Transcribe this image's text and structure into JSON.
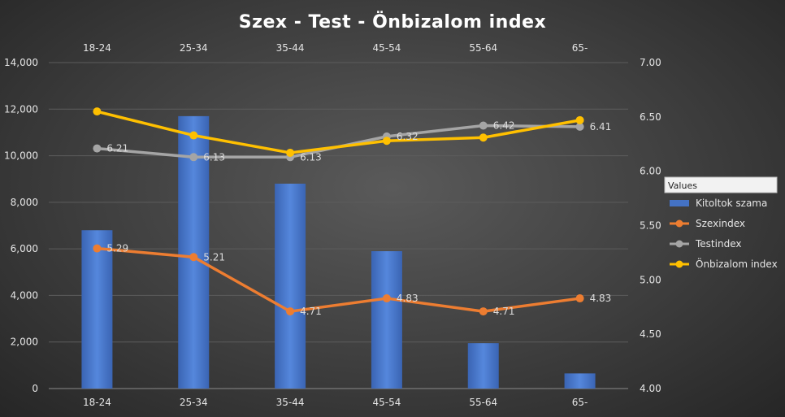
{
  "chart_data": {
    "type": "bar",
    "title": "Szex - Test - Önbizalom index",
    "categories": [
      "18-24",
      "25-34",
      "35-44",
      "45-54",
      "55-64",
      "65-"
    ],
    "left_axis": {
      "min": 0,
      "max": 14000,
      "step": 2000,
      "ticks": [
        "0",
        "2,000",
        "4,000",
        "6,000",
        "8,000",
        "10,000",
        "12,000",
        "14,000"
      ]
    },
    "right_axis": {
      "min": 4.0,
      "max": 7.0,
      "step": 0.5,
      "ticks": [
        "4.00",
        "4.50",
        "5.00",
        "5.50",
        "6.00",
        "6.50",
        "7.00"
      ]
    },
    "series": [
      {
        "name": "Kitoltok szama",
        "kind": "bar",
        "axis": "left",
        "color": "#4472c4",
        "values": [
          6800,
          11700,
          8800,
          5900,
          1950,
          650
        ]
      },
      {
        "name": "Szexindex",
        "kind": "line",
        "axis": "right",
        "color": "#ed7d31",
        "values": [
          5.29,
          5.21,
          4.71,
          4.83,
          4.71,
          4.83
        ],
        "labels": [
          "5.29",
          "5.21",
          "4.71",
          "4.83",
          "4.71",
          "4.83"
        ]
      },
      {
        "name": "Testindex",
        "kind": "line",
        "axis": "right",
        "color": "#a5a5a5",
        "values": [
          6.21,
          6.13,
          6.13,
          6.32,
          6.42,
          6.41
        ],
        "labels": [
          "6.21",
          "6.13",
          "6.13",
          "6.32",
          "6.42",
          "6.41"
        ]
      },
      {
        "name": "Önbizalom index",
        "kind": "line",
        "axis": "right",
        "color": "#ffc000",
        "values": [
          6.55,
          6.33,
          6.17,
          6.28,
          6.31,
          6.47
        ]
      }
    ],
    "legend": {
      "title": "Values",
      "position": "right",
      "entries": [
        "Kitoltok szama",
        "Szexindex",
        "Testindex",
        "Önbizalom index"
      ]
    },
    "grid": true
  }
}
